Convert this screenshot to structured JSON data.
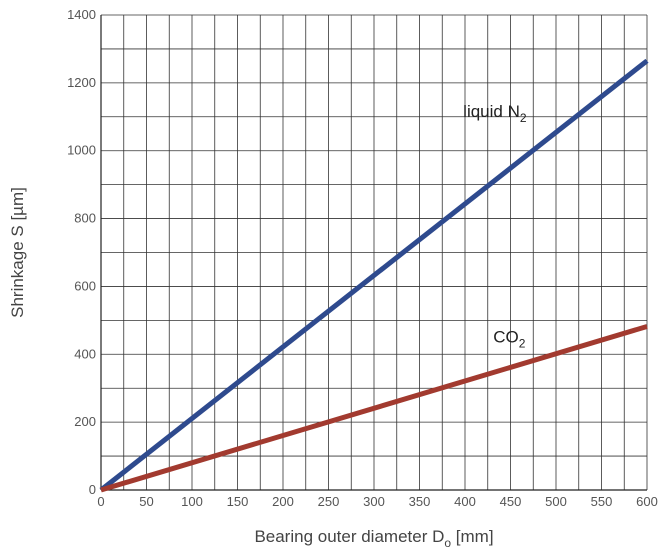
{
  "chart_data": {
    "type": "line",
    "title": "",
    "xlabel": {
      "main": "Bearing outer diameter D",
      "subscript": "o",
      "suffix": " [mm]"
    },
    "ylabel": "Shrinkage S [µm]",
    "xlim": [
      0,
      600
    ],
    "ylim": [
      0,
      1400
    ],
    "x_ticks": [
      0,
      50,
      100,
      150,
      200,
      250,
      300,
      350,
      400,
      450,
      500,
      550,
      600
    ],
    "y_ticks": [
      0,
      200,
      400,
      600,
      800,
      1000,
      1200,
      1400
    ],
    "grid": true,
    "series": [
      {
        "name": "liquid N2",
        "label": {
          "main": "liquid N",
          "subscript": "2"
        },
        "color": "#2e4a8e",
        "x": [
          0,
          600
        ],
        "y": [
          0,
          1265
        ]
      },
      {
        "name": "CO2",
        "label": {
          "main": "CO",
          "subscript": "2"
        },
        "color": "#a23a2f",
        "x": [
          0,
          600
        ],
        "y": [
          0,
          482
        ]
      }
    ]
  }
}
